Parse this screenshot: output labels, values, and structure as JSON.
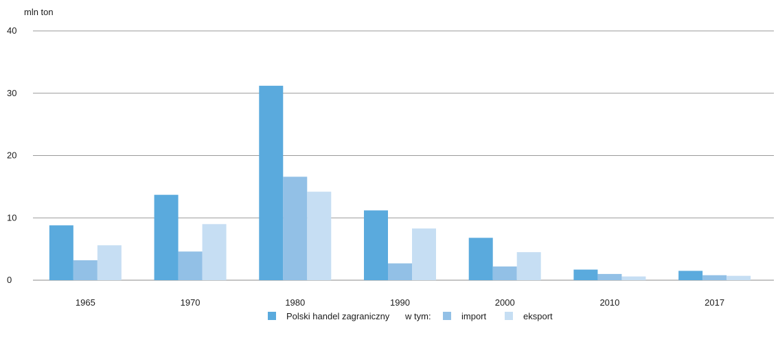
{
  "chart_data": {
    "type": "bar",
    "unit_label": "mln ton",
    "categories": [
      "1965",
      "1970",
      "1980",
      "1990",
      "2000",
      "2010",
      "2017"
    ],
    "series": [
      {
        "name": "Polski handel zagraniczny",
        "color": "#5aaadd",
        "values": [
          8.8,
          13.7,
          31.2,
          11.2,
          6.8,
          1.7,
          1.5
        ]
      },
      {
        "name": "import",
        "color": "#92c0e6",
        "values": [
          3.2,
          4.6,
          16.6,
          2.7,
          2.2,
          1.0,
          0.8
        ]
      },
      {
        "name": "eksport",
        "color": "#c6def3",
        "values": [
          5.6,
          9.0,
          14.2,
          8.3,
          4.5,
          0.6,
          0.7
        ]
      }
    ],
    "ylim": [
      0,
      40
    ],
    "yticks": [
      "0",
      "10",
      "20",
      "30",
      "40"
    ],
    "grid": true,
    "legend_prefix": "w tym:",
    "legend_position": "bottom-center"
  }
}
